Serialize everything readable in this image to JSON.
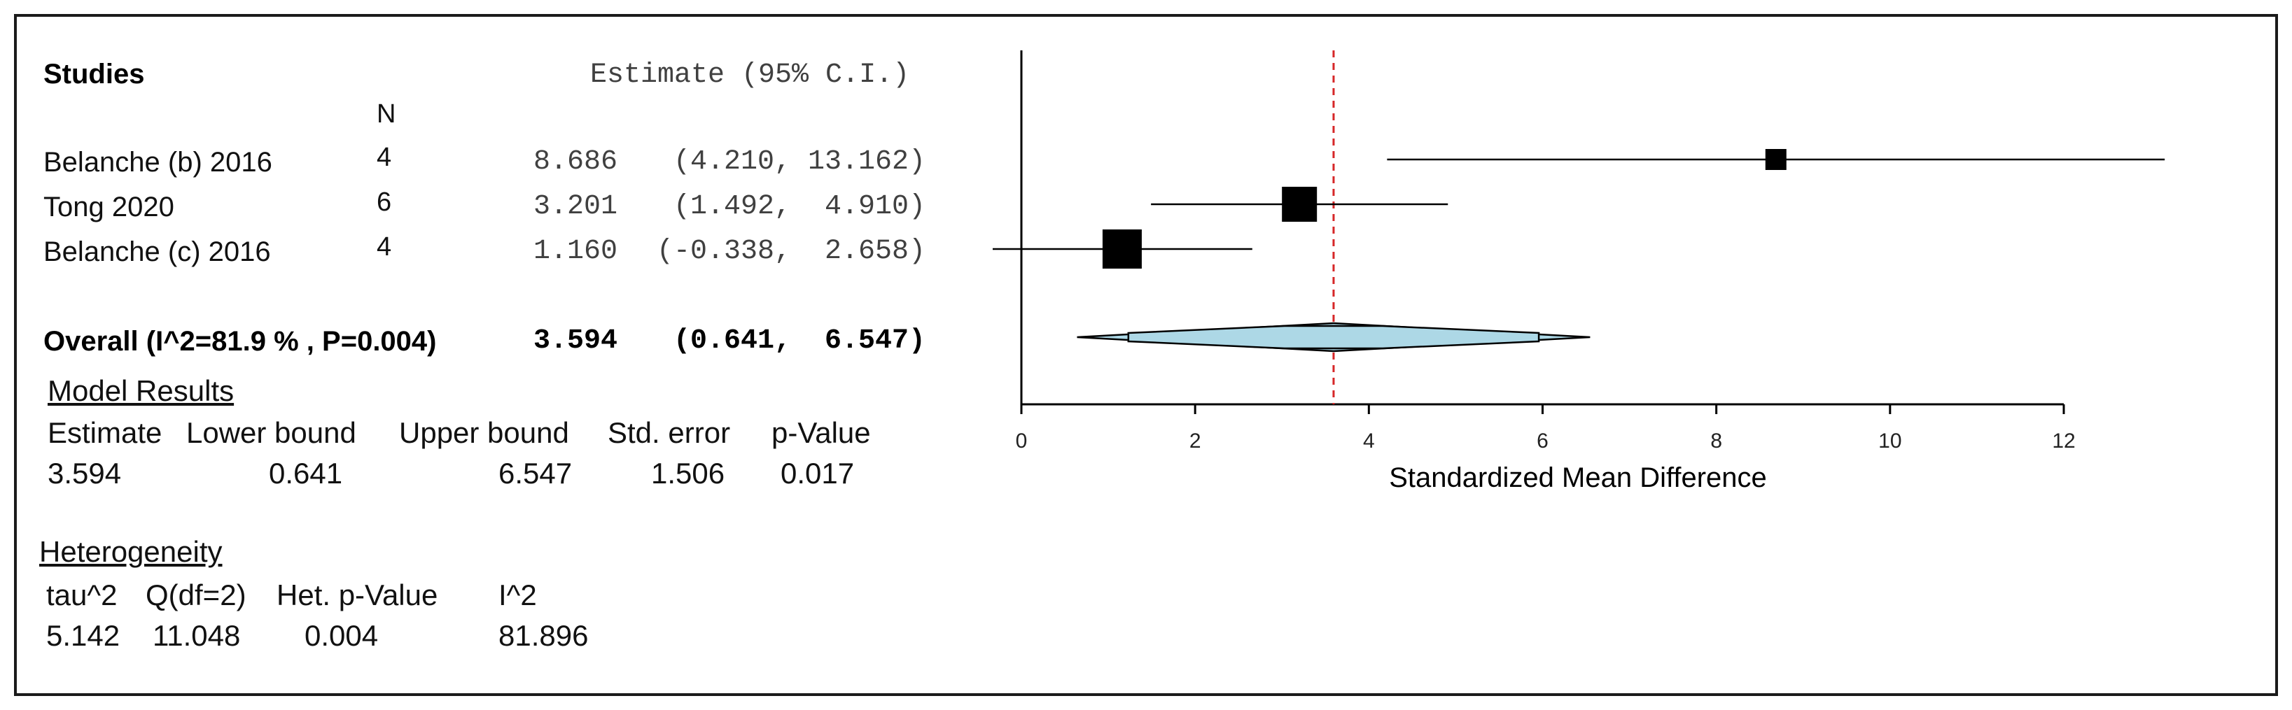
{
  "table": {
    "studies_header": "Studies",
    "estimate_header": "Estimate (95% C.I.)",
    "n_header": "N",
    "rows": [
      {
        "name": "Belanche (b) 2016",
        "n": "4",
        "estimate": "8.686",
        "ci": "(4.210, 13.162)"
      },
      {
        "name": "Tong 2020",
        "n": "6",
        "estimate": "3.201",
        "ci": "(1.492,  4.910)"
      },
      {
        "name": "Belanche (c) 2016",
        "n": "4",
        "estimate": "1.160",
        "ci": "(-0.338,  2.658)"
      }
    ],
    "overall": {
      "label": "Overall (I^2=81.9 % , P=0.004)",
      "estimate": "3.594",
      "ci": "(0.641,  6.547)"
    }
  },
  "model_results": {
    "title": "Model Results",
    "headers": [
      "Estimate",
      "Lower bound",
      "Upper bound",
      "Std. error",
      "p-Value"
    ],
    "values": [
      "3.594",
      "0.641",
      "6.547",
      "1.506",
      "0.017"
    ]
  },
  "heterogeneity": {
    "title": "Heterogeneity",
    "headers": [
      "tau^2",
      "Q(df=2)",
      "Het. p-Value",
      "I^2"
    ],
    "values": [
      "5.142",
      "11.048",
      "0.004",
      "81.896"
    ]
  },
  "chart_data": {
    "type": "forest",
    "xlabel": "Standardized Mean Difference",
    "xlim": [
      0,
      12
    ],
    "xticks": [
      0,
      2,
      4,
      6,
      8,
      10,
      12
    ],
    "reference_line": 3.594,
    "studies": [
      {
        "name": "Belanche (b) 2016",
        "estimate": 8.686,
        "lower": 4.21,
        "upper": 13.162,
        "weight": 1
      },
      {
        "name": "Tong 2020",
        "estimate": 3.201,
        "lower": 1.492,
        "upper": 4.91,
        "weight": 2
      },
      {
        "name": "Belanche (c) 2016",
        "estimate": 1.16,
        "lower": -0.338,
        "upper": 2.658,
        "weight": 3
      }
    ],
    "overall": {
      "estimate": 3.594,
      "lower": 0.641,
      "upper": 6.547
    },
    "colors": {
      "diamond": "#add8e6",
      "reference": "#d62728",
      "marks": "#000000"
    }
  }
}
